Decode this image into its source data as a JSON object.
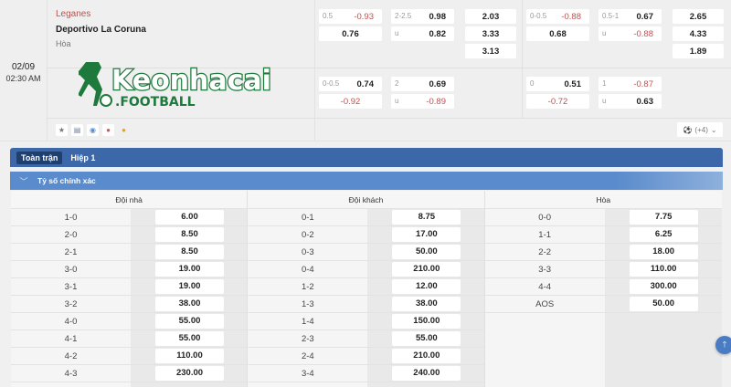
{
  "match": {
    "date": "02/09",
    "time": "02:30 AM",
    "home": "Leganes",
    "away": "Deportivo La Coruna",
    "draw": "Hòa",
    "logo_text": "Keonhacai .FOOTBALL",
    "icons": [
      "star-icon",
      "stats-icon",
      "eye-icon",
      "fire-icon",
      "medal-icon"
    ],
    "more_count": "(+4)"
  },
  "odds_rows": [
    {
      "ft_hdp": {
        "line": "0.5",
        "home": "-0.93",
        "away": "0.76"
      },
      "ft_ou": {
        "line": "2-2.5",
        "over": "0.98",
        "u": "u",
        "under": "0.82"
      },
      "ft_1x2": [
        "2.03",
        "3.33",
        "3.13"
      ],
      "h1_hdp": {
        "line": "0-0.5",
        "home": "-0.88",
        "away": "0.68"
      },
      "h1_ou": {
        "line": "0.5-1",
        "over": "0.67",
        "u": "u",
        "under": "-0.88"
      },
      "h1_1x2": [
        "2.65",
        "4.33",
        "1.89"
      ]
    },
    {
      "ft_hdp": {
        "line": "0-0.5",
        "home": "0.74",
        "away": "-0.92"
      },
      "ft_ou": {
        "line": "2",
        "over": "0.69",
        "u": "u",
        "under": "-0.89"
      },
      "h1_hdp": {
        "line": "0",
        "home": "0.51",
        "away": "-0.72"
      },
      "h1_ou": {
        "line": "1",
        "over": "-0.87",
        "u": "u",
        "under": "0.63"
      }
    }
  ],
  "tabs": [
    {
      "label": "Toàn trận",
      "active": true
    },
    {
      "label": "Hiệp 1",
      "active": false
    }
  ],
  "section_title": "Tỷ số chính xác",
  "columns": [
    {
      "header": "Đội nhà",
      "rows": [
        [
          "1-0",
          "6.00"
        ],
        [
          "2-0",
          "8.50"
        ],
        [
          "2-1",
          "8.50"
        ],
        [
          "3-0",
          "19.00"
        ],
        [
          "3-1",
          "19.00"
        ],
        [
          "3-2",
          "38.00"
        ],
        [
          "4-0",
          "55.00"
        ],
        [
          "4-1",
          "55.00"
        ],
        [
          "4-2",
          "110.00"
        ],
        [
          "4-3",
          "230.00"
        ]
      ]
    },
    {
      "header": "Đội khách",
      "rows": [
        [
          "0-1",
          "8.75"
        ],
        [
          "0-2",
          "17.00"
        ],
        [
          "0-3",
          "50.00"
        ],
        [
          "0-4",
          "210.00"
        ],
        [
          "1-2",
          "12.00"
        ],
        [
          "1-3",
          "38.00"
        ],
        [
          "1-4",
          "150.00"
        ],
        [
          "2-3",
          "55.00"
        ],
        [
          "2-4",
          "210.00"
        ],
        [
          "3-4",
          "240.00"
        ]
      ]
    },
    {
      "header": "Hòa",
      "rows": [
        [
          "0-0",
          "7.75"
        ],
        [
          "1-1",
          "6.25"
        ],
        [
          "2-2",
          "18.00"
        ],
        [
          "3-3",
          "110.00"
        ],
        [
          "4-4",
          "300.00"
        ],
        [
          "AOS",
          "50.00"
        ]
      ]
    }
  ],
  "colors": {
    "negative": "#c0504d",
    "tab_bar": "#3c67a8",
    "section": "#5a8bcc"
  }
}
